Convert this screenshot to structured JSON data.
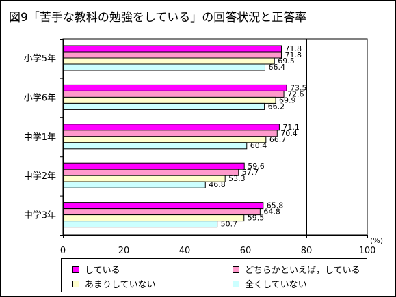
{
  "colors": {
    "series_1": "#ff00ff",
    "series_2": "#ff99cc",
    "series_3": "#ffffcc",
    "series_4": "#ccffff",
    "axis": "#000000"
  },
  "chart_data": {
    "type": "bar",
    "orientation": "horizontal",
    "title": "図9「苦手な教科の勉強をしている」の回答状況と正答率",
    "unit": "(%)",
    "categories": [
      "小学5年",
      "小学6年",
      "中学1年",
      "中学2年",
      "中学3年"
    ],
    "series": [
      {
        "name": "している",
        "values": [
          71.8,
          73.5,
          71.1,
          59.6,
          65.8
        ]
      },
      {
        "name": "どちらかといえば，している",
        "values": [
          71.8,
          72.6,
          70.4,
          57.7,
          64.8
        ]
      },
      {
        "name": "あまりしていない",
        "values": [
          69.5,
          69.9,
          66.7,
          53.3,
          59.5
        ]
      },
      {
        "name": "全くしていない",
        "values": [
          66.4,
          66.2,
          60.4,
          46.8,
          50.7
        ]
      }
    ],
    "xlim": [
      0,
      100
    ],
    "xticks": [
      0,
      20,
      40,
      60,
      80,
      100
    ],
    "grid": true,
    "legend_position": "bottom"
  }
}
